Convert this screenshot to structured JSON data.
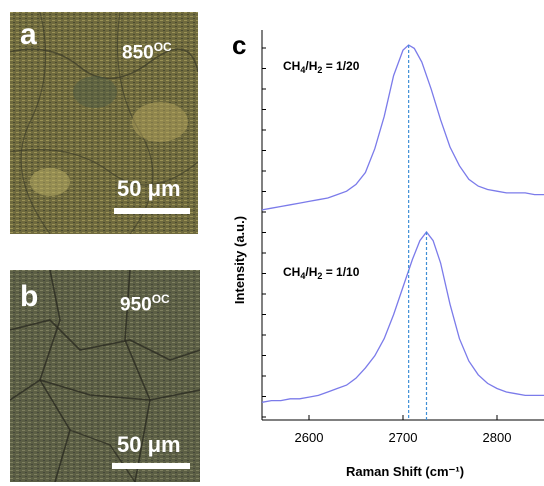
{
  "panel_a": {
    "letter": "a",
    "temperature": "850",
    "temperature_unit": "OC",
    "scale_text": "50 μm"
  },
  "panel_b": {
    "letter": "b",
    "temperature": "950",
    "temperature_unit": "OC",
    "scale_text": "50 μm"
  },
  "chart_data": {
    "type": "line",
    "panel_letter": "c",
    "xlabel": "Raman Shift (cm⁻¹)",
    "ylabel": "Intensity (a.u.)",
    "xlim": [
      2550,
      2850
    ],
    "x_ticks": [
      2600,
      2700,
      2800
    ],
    "grid": false,
    "line_color": "#7b7bea",
    "marker_color": "#3f8fd6",
    "series": [
      {
        "name": "CH4/H2 = 1/20",
        "peak_x": 2706,
        "x": [
          2550,
          2560,
          2570,
          2580,
          2590,
          2600,
          2610,
          2620,
          2630,
          2640,
          2650,
          2660,
          2670,
          2680,
          2690,
          2700,
          2706,
          2712,
          2720,
          2730,
          2740,
          2750,
          2760,
          2770,
          2780,
          2790,
          2800,
          2810,
          2820,
          2830,
          2840,
          2850
        ],
        "intensity": [
          0.03,
          0.04,
          0.05,
          0.06,
          0.07,
          0.08,
          0.09,
          0.1,
          0.12,
          0.14,
          0.18,
          0.25,
          0.39,
          0.58,
          0.82,
          0.97,
          1.0,
          0.98,
          0.9,
          0.74,
          0.56,
          0.4,
          0.29,
          0.21,
          0.17,
          0.15,
          0.14,
          0.13,
          0.13,
          0.13,
          0.12,
          0.12
        ]
      },
      {
        "name": "CH4/H2 = 1/10",
        "peak_x": 2725,
        "x": [
          2550,
          2560,
          2570,
          2580,
          2590,
          2600,
          2610,
          2620,
          2630,
          2640,
          2650,
          2660,
          2670,
          2680,
          2690,
          2700,
          2710,
          2718,
          2725,
          2732,
          2740,
          2750,
          2760,
          2770,
          2780,
          2790,
          2800,
          2810,
          2820,
          2830,
          2840,
          2850
        ],
        "intensity": [
          0.01,
          0.02,
          0.02,
          0.03,
          0.03,
          0.04,
          0.05,
          0.07,
          0.09,
          0.11,
          0.15,
          0.21,
          0.28,
          0.38,
          0.52,
          0.68,
          0.84,
          0.95,
          1.0,
          0.95,
          0.82,
          0.58,
          0.38,
          0.25,
          0.17,
          0.12,
          0.09,
          0.07,
          0.06,
          0.05,
          0.05,
          0.05
        ]
      }
    ],
    "series_labels": [
      {
        "base": "CH",
        "sub1": "4",
        "mid": "/H",
        "sub2": "2",
        "tail": " = 1/20"
      },
      {
        "base": "CH",
        "sub1": "4",
        "mid": "/H",
        "sub2": "2",
        "tail": " = 1/10"
      }
    ]
  }
}
